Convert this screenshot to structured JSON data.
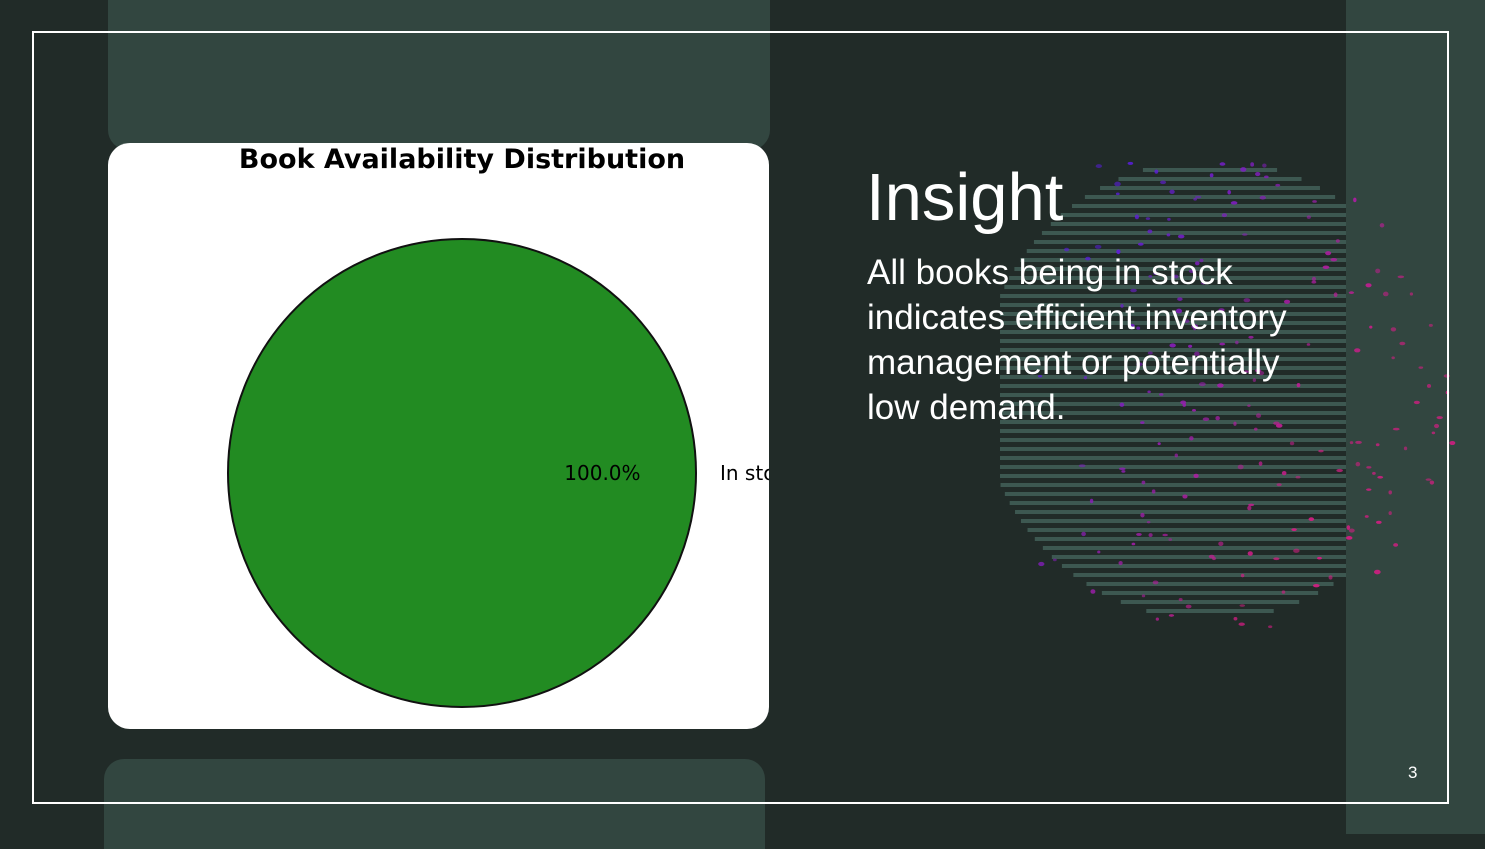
{
  "slide": {
    "title": "Insight",
    "body": "All books being in stock indicates efficient inventory management or potentially low demand.",
    "page_number": "3"
  },
  "colors": {
    "background": "#212b28",
    "panel": "#324640",
    "frame": "#ffffff",
    "pie_fill": "#228b22"
  },
  "chart_data": {
    "type": "pie",
    "title": "Book Availability Distribution",
    "slices": [
      {
        "label": "In stock",
        "value": 100.0,
        "pct_label": "100.0%"
      }
    ]
  }
}
